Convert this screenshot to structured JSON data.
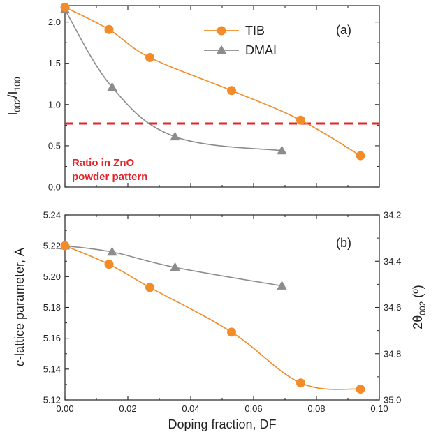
{
  "colors": {
    "tib": "#f28c28",
    "dmai": "#8c8c8c",
    "ref": "#e0262a",
    "axis": "#222222"
  },
  "xaxis": {
    "label": "Doping fraction, DF",
    "xlim": [
      0.0,
      0.1
    ],
    "ticks": [
      0.0,
      0.02,
      0.04,
      0.06,
      0.08,
      0.1
    ],
    "tick_labels": [
      "0.00",
      "0.02",
      "0.04",
      "0.06",
      "0.08",
      "0.10"
    ]
  },
  "chart_data": [
    {
      "type": "line",
      "panel_label": "(a)",
      "ylabel_main": "I",
      "ylabel_sub1": "002",
      "ylabel_mid": "/I",
      "ylabel_sub2": "100",
      "ylim": [
        0.0,
        2.2
      ],
      "yticks": [
        0.0,
        0.5,
        1.0,
        1.5,
        2.0
      ],
      "ytick_labels": [
        "0.0",
        "0.5",
        "1.0",
        "1.5",
        "2.0"
      ],
      "legend_position": "top-center",
      "series": [
        {
          "name": "TIB",
          "marker": "circle",
          "x": [
            0.0,
            0.014,
            0.027,
            0.053,
            0.075,
            0.094
          ],
          "y": [
            2.18,
            1.91,
            1.57,
            1.17,
            0.81,
            0.38
          ]
        },
        {
          "name": "DMAI",
          "marker": "triangle",
          "x": [
            0.0,
            0.015,
            0.035,
            0.069
          ],
          "y": [
            2.15,
            1.21,
            0.61,
            0.44
          ]
        }
      ],
      "reference_line": {
        "y": 0.77
      },
      "annotation_line1": "Ratio in ZnO",
      "annotation_line2": "powder pattern"
    },
    {
      "type": "line",
      "panel_label": "(b)",
      "ylabel_italic": "c",
      "ylabel_rest": "-lattice parameter, Å",
      "ylim": [
        5.12,
        5.24
      ],
      "yticks": [
        5.12,
        5.14,
        5.16,
        5.18,
        5.2,
        5.22,
        5.24
      ],
      "ytick_labels": [
        "5.12",
        "5.14",
        "5.16",
        "5.18",
        "5.20",
        "5.22",
        "5.24"
      ],
      "y2label_main": "2θ",
      "y2label_sub": "002",
      "y2label_unit": " (º)",
      "y2lim": [
        35.0,
        34.2
      ],
      "y2ticks": [
        34.2,
        34.4,
        34.6,
        34.8,
        35.0
      ],
      "y2tick_labels": [
        "34.2",
        "34.4",
        "34.6",
        "34.8",
        "35.0"
      ],
      "series": [
        {
          "name": "TIB",
          "marker": "circle",
          "x": [
            0.0,
            0.014,
            0.027,
            0.053,
            0.075,
            0.094
          ],
          "y": [
            5.22,
            5.208,
            5.193,
            5.164,
            5.131,
            5.127
          ]
        },
        {
          "name": "DMAI",
          "marker": "triangle",
          "x": [
            0.0,
            0.015,
            0.035,
            0.069
          ],
          "y": [
            5.22,
            5.216,
            5.206,
            5.194
          ]
        }
      ]
    }
  ]
}
